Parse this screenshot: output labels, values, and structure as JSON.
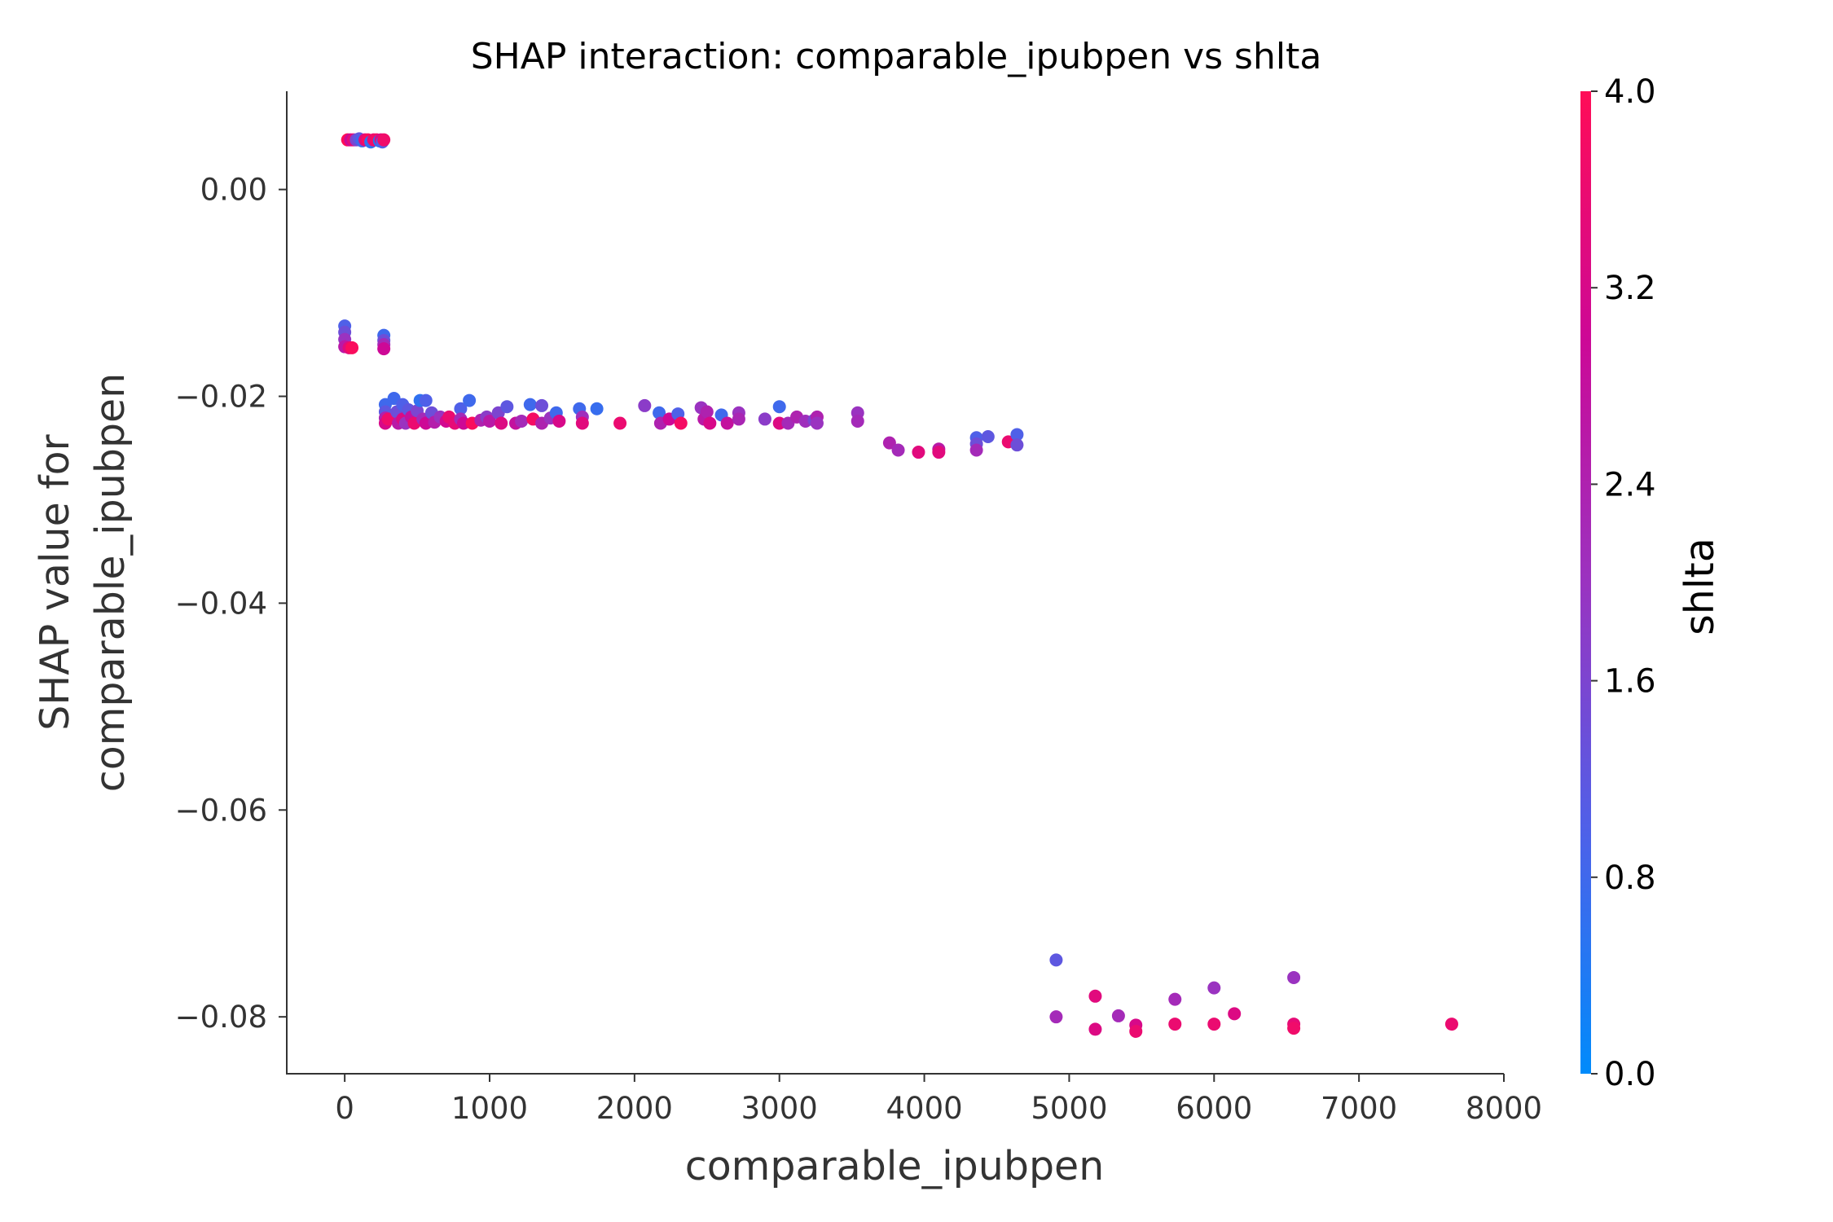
{
  "chart_data": {
    "type": "scatter",
    "title": "SHAP interaction: comparable_ipubpen vs shlta",
    "xlabel": "comparable_ipubpen",
    "ylabel_line1": "SHAP value for",
    "ylabel_line2": "comparable_ipubpen",
    "xlim": [
      -400,
      8000
    ],
    "ylim": [
      -0.0855,
      0.0095
    ],
    "xticks": [
      0,
      1000,
      2000,
      3000,
      4000,
      5000,
      6000,
      7000,
      8000
    ],
    "xtick_labels": [
      "0",
      "1000",
      "2000",
      "3000",
      "4000",
      "5000",
      "6000",
      "7000",
      "8000"
    ],
    "yticks": [
      0.0,
      -0.02,
      -0.04,
      -0.06,
      -0.08
    ],
    "ytick_labels": [
      "0.00",
      "−0.02",
      "−0.04",
      "−0.06",
      "−0.08"
    ],
    "grid": false,
    "colorbar": {
      "label": "shlta",
      "range": [
        0.0,
        4.0
      ],
      "ticks": [
        0.0,
        0.8,
        1.6,
        2.4,
        3.2,
        4.0
      ],
      "tick_labels": [
        "0.0",
        "0.8",
        "1.6",
        "2.4",
        "3.2",
        "4.0"
      ],
      "colors": [
        "#008bfb",
        "#4f60e8",
        "#9a33c0",
        "#cd0896",
        "#ff0d57"
      ]
    },
    "points": [
      [
        20,
        0.0048,
        4
      ],
      [
        40,
        0.0048,
        3
      ],
      [
        60,
        0.0048,
        3.5
      ],
      [
        80,
        0.0048,
        1.6
      ],
      [
        100,
        0.0049,
        1.2
      ],
      [
        120,
        0.0047,
        0.8
      ],
      [
        140,
        0.0048,
        3.4
      ],
      [
        160,
        0.0048,
        3.9
      ],
      [
        180,
        0.0046,
        0.6
      ],
      [
        200,
        0.0048,
        3.6
      ],
      [
        220,
        0.0048,
        3.8
      ],
      [
        240,
        0.0047,
        0.4
      ],
      [
        250,
        0.0048,
        3.3
      ],
      [
        260,
        0.0046,
        1.0
      ],
      [
        270,
        0.0048,
        3.7
      ],
      [
        0,
        -0.0132,
        1.0
      ],
      [
        0,
        -0.0138,
        1.4
      ],
      [
        0,
        -0.0145,
        2.0
      ],
      [
        0,
        -0.0152,
        2.6
      ],
      [
        30,
        -0.0153,
        3.4
      ],
      [
        50,
        -0.0153,
        3.9
      ],
      [
        270,
        -0.0141,
        0.8
      ],
      [
        270,
        -0.0146,
        1.4
      ],
      [
        270,
        -0.015,
        2.2
      ],
      [
        270,
        -0.0154,
        3.0
      ],
      [
        280,
        -0.0208,
        0.8
      ],
      [
        280,
        -0.0215,
        1.2
      ],
      [
        280,
        -0.0221,
        2.4
      ],
      [
        280,
        -0.0226,
        3.2
      ],
      [
        300,
        -0.0222,
        3.7
      ],
      [
        340,
        -0.0202,
        0.8
      ],
      [
        360,
        -0.0215,
        1.4
      ],
      [
        370,
        -0.0226,
        2.6
      ],
      [
        400,
        -0.0208,
        1.0
      ],
      [
        400,
        -0.0222,
        3.3
      ],
      [
        420,
        -0.0226,
        2.0
      ],
      [
        440,
        -0.0213,
        1.2
      ],
      [
        460,
        -0.022,
        2.8
      ],
      [
        480,
        -0.0226,
        3.6
      ],
      [
        500,
        -0.0214,
        1.6
      ],
      [
        520,
        -0.0204,
        0.6
      ],
      [
        540,
        -0.0222,
        2.2
      ],
      [
        560,
        -0.0204,
        1.0
      ],
      [
        560,
        -0.0226,
        3.0
      ],
      [
        600,
        -0.0216,
        1.4
      ],
      [
        620,
        -0.0225,
        2.5
      ],
      [
        660,
        -0.022,
        2.0
      ],
      [
        700,
        -0.0224,
        3.1
      ],
      [
        720,
        -0.022,
        3.6
      ],
      [
        760,
        -0.0226,
        3.5
      ],
      [
        800,
        -0.0212,
        1.0
      ],
      [
        800,
        -0.0222,
        2.2
      ],
      [
        820,
        -0.0226,
        3.0
      ],
      [
        860,
        -0.0204,
        0.8
      ],
      [
        880,
        -0.0226,
        3.9
      ],
      [
        940,
        -0.0223,
        2.4
      ],
      [
        980,
        -0.022,
        1.8
      ],
      [
        1000,
        -0.0224,
        2.6
      ],
      [
        1060,
        -0.0216,
        1.6
      ],
      [
        1080,
        -0.0226,
        3.3
      ],
      [
        1120,
        -0.021,
        1.2
      ],
      [
        1180,
        -0.0226,
        2.8
      ],
      [
        1220,
        -0.0224,
        2.2
      ],
      [
        1280,
        -0.0208,
        0.8
      ],
      [
        1300,
        -0.0222,
        3.8
      ],
      [
        1360,
        -0.0209,
        1.4
      ],
      [
        1360,
        -0.0226,
        2.4
      ],
      [
        1420,
        -0.0221,
        2.0
      ],
      [
        1460,
        -0.0216,
        0.8
      ],
      [
        1480,
        -0.0224,
        3.2
      ],
      [
        1620,
        -0.0212,
        0.8
      ],
      [
        1640,
        -0.022,
        2.1
      ],
      [
        1640,
        -0.0226,
        3.4
      ],
      [
        1740,
        -0.0212,
        0.7
      ],
      [
        1900,
        -0.0226,
        3.6
      ],
      [
        2070,
        -0.0209,
        1.8
      ],
      [
        2170,
        -0.0216,
        0.8
      ],
      [
        2180,
        -0.0226,
        2.4
      ],
      [
        2240,
        -0.0222,
        3.0
      ],
      [
        2300,
        -0.0217,
        1.0
      ],
      [
        2320,
        -0.0226,
        3.8
      ],
      [
        2460,
        -0.0211,
        2.0
      ],
      [
        2480,
        -0.0222,
        2.6
      ],
      [
        2500,
        -0.0215,
        2.4
      ],
      [
        2520,
        -0.0226,
        3.2
      ],
      [
        2600,
        -0.0218,
        0.8
      ],
      [
        2640,
        -0.0226,
        2.8
      ],
      [
        2720,
        -0.0216,
        2.0
      ],
      [
        2720,
        -0.0222,
        2.3
      ],
      [
        2900,
        -0.0222,
        1.8
      ],
      [
        3000,
        -0.021,
        0.8
      ],
      [
        3000,
        -0.0226,
        3.3
      ],
      [
        3060,
        -0.0226,
        2.2
      ],
      [
        3120,
        -0.022,
        2.4
      ],
      [
        3180,
        -0.0224,
        2.1
      ],
      [
        3240,
        -0.0223,
        1.6
      ],
      [
        3260,
        -0.022,
        2.4
      ],
      [
        3260,
        -0.0226,
        2.0
      ],
      [
        3540,
        -0.0216,
        2.0
      ],
      [
        3540,
        -0.0224,
        2.2
      ],
      [
        3760,
        -0.0245,
        2.4
      ],
      [
        3820,
        -0.0252,
        2.2
      ],
      [
        3960,
        -0.0254,
        3.4
      ],
      [
        4100,
        -0.0251,
        2.6
      ],
      [
        4100,
        -0.0254,
        3.4
      ],
      [
        4360,
        -0.024,
        1.0
      ],
      [
        4360,
        -0.0246,
        1.4
      ],
      [
        4360,
        -0.0252,
        2.2
      ],
      [
        4440,
        -0.0239,
        1.2
      ],
      [
        4580,
        -0.0244,
        3.6
      ],
      [
        4640,
        -0.0237,
        1.0
      ],
      [
        4640,
        -0.0247,
        1.4
      ],
      [
        4910,
        -0.0745,
        1.2
      ],
      [
        4910,
        -0.08,
        2.2
      ],
      [
        5180,
        -0.078,
        3.4
      ],
      [
        5180,
        -0.0812,
        3.3
      ],
      [
        5340,
        -0.0799,
        2.2
      ],
      [
        5460,
        -0.0808,
        3.2
      ],
      [
        5460,
        -0.0814,
        3.6
      ],
      [
        5730,
        -0.0783,
        2.2
      ],
      [
        5730,
        -0.0807,
        3.6
      ],
      [
        6000,
        -0.0772,
        2.0
      ],
      [
        6000,
        -0.0807,
        3.6
      ],
      [
        6140,
        -0.0797,
        3.3
      ],
      [
        6550,
        -0.0762,
        2.0
      ],
      [
        6550,
        -0.0807,
        3.5
      ],
      [
        6550,
        -0.0811,
        3.7
      ],
      [
        7640,
        -0.0807,
        3.6
      ]
    ]
  }
}
